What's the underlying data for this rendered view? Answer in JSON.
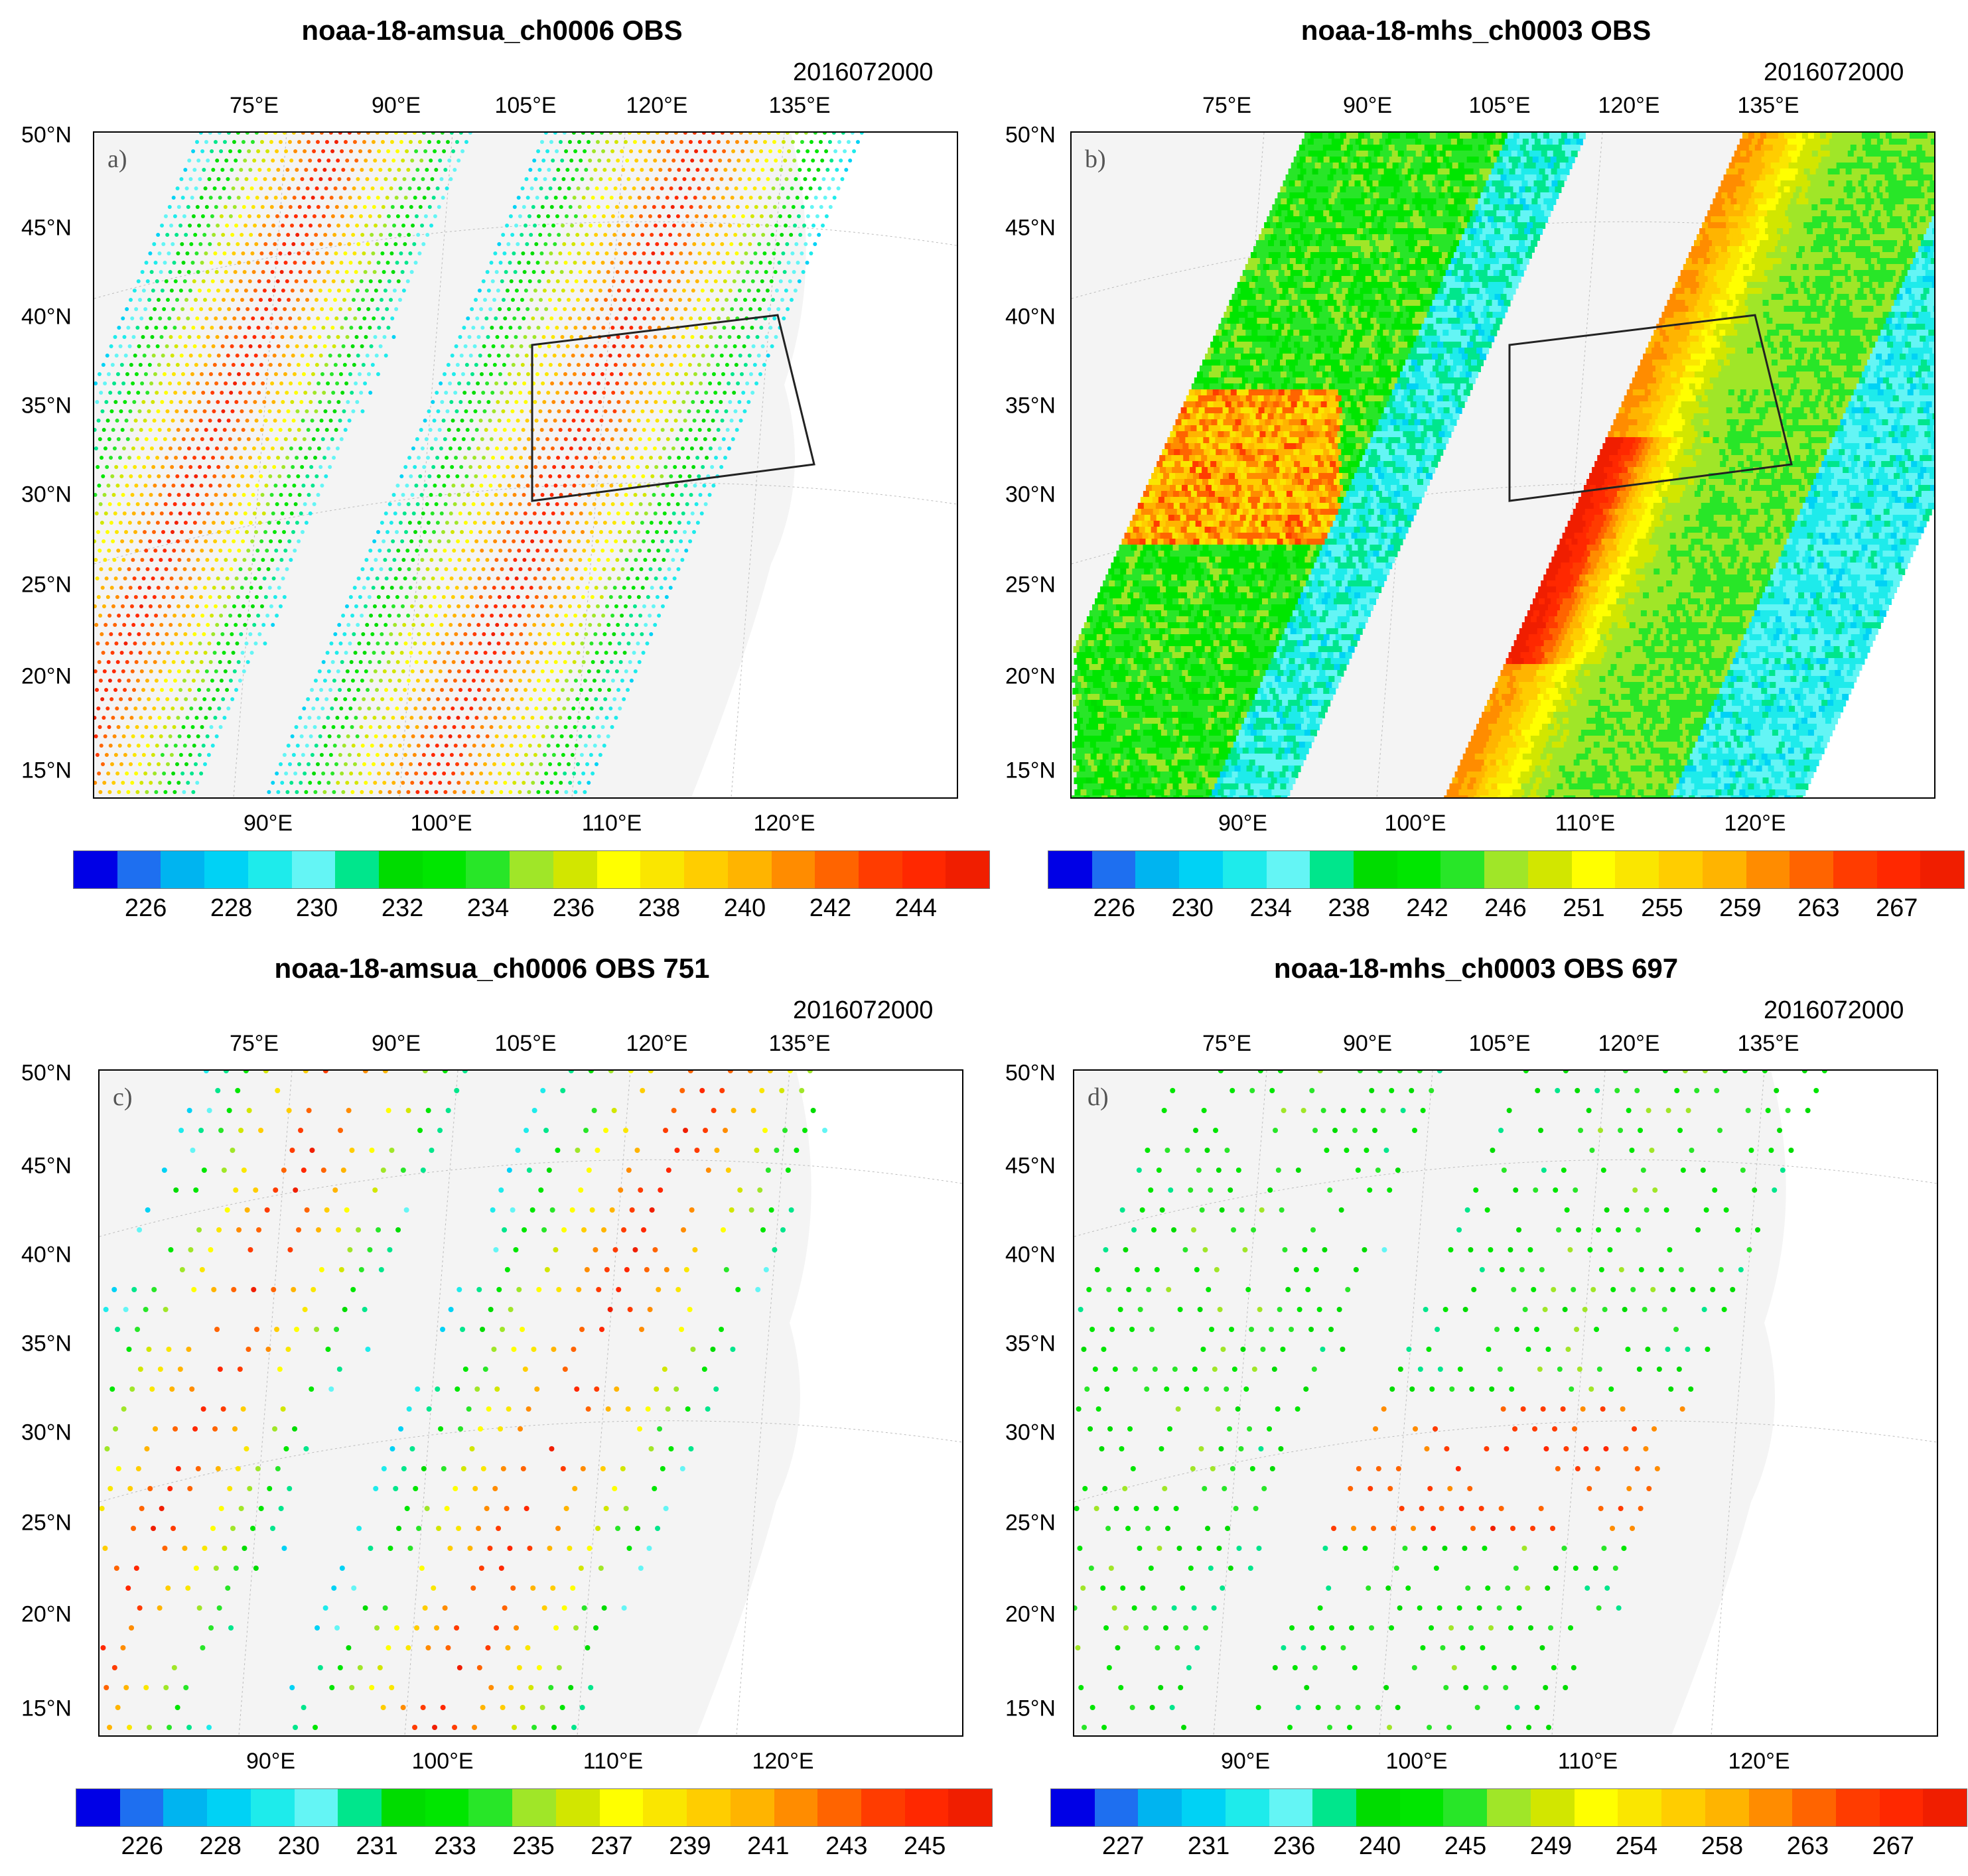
{
  "colors": [
    "#0000e6",
    "#1e6ff0",
    "#00b4f0",
    "#00d2f5",
    "#1eebeb",
    "#64f5f5",
    "#00e68c",
    "#00dc00",
    "#00e600",
    "#28e628",
    "#a0e628",
    "#d2e600",
    "#ffff00",
    "#fae600",
    "#ffcd00",
    "#ffb400",
    "#ff8c00",
    "#ff6400",
    "#ff3c00",
    "#ff2800",
    "#f01e00"
  ],
  "panels": [
    {
      "label": "a)",
      "title": "noaa-18-amsua_ch0006 OBS",
      "date": "2016072000",
      "top_lon_labels": [
        "75°E",
        "90°E",
        "105°E",
        "120°E",
        "135°E"
      ],
      "lat_labels": [
        "50°N",
        "45°N",
        "40°N",
        "35°N",
        "30°N",
        "25°N",
        "20°N",
        "15°N"
      ],
      "bottom_lon_labels": [
        "90°E",
        "100°E",
        "110°E",
        "120°E"
      ],
      "colorbar_labels": [
        "226",
        "228",
        "230",
        "232",
        "234",
        "236",
        "238",
        "240",
        "242",
        "244"
      ],
      "style": "swath"
    },
    {
      "label": "b)",
      "title": "noaa-18-mhs_ch0003 OBS",
      "date": "2016072000",
      "top_lon_labels": [
        "75°E",
        "90°E",
        "105°E",
        "120°E",
        "135°E"
      ],
      "lat_labels": [
        "50°N",
        "45°N",
        "40°N",
        "35°N",
        "30°N",
        "25°N",
        "20°N",
        "15°N"
      ],
      "bottom_lon_labels": [
        "90°E",
        "100°E",
        "110°E",
        "120°E"
      ],
      "colorbar_labels": [
        "226",
        "230",
        "234",
        "238",
        "242",
        "246",
        "251",
        "255",
        "259",
        "263",
        "267"
      ],
      "style": "field"
    },
    {
      "label": "c)",
      "title": "noaa-18-amsua_ch0006  OBS  751",
      "date": "2016072000",
      "top_lon_labels": [
        "75°E",
        "90°E",
        "105°E",
        "120°E",
        "135°E"
      ],
      "lat_labels": [
        "50°N",
        "45°N",
        "40°N",
        "35°N",
        "30°N",
        "25°N",
        "20°N",
        "15°N"
      ],
      "bottom_lon_labels": [
        "90°E",
        "100°E",
        "110°E",
        "120°E"
      ],
      "colorbar_labels": [
        "226",
        "228",
        "230",
        "231",
        "233",
        "235",
        "237",
        "239",
        "241",
        "243",
        "245"
      ],
      "style": "thinned"
    },
    {
      "label": "d)",
      "title": "noaa-18-mhs_ch0003  OBS  697",
      "date": "2016072000",
      "top_lon_labels": [
        "75°E",
        "90°E",
        "105°E",
        "120°E",
        "135°E"
      ],
      "lat_labels": [
        "50°N",
        "45°N",
        "40°N",
        "35°N",
        "30°N",
        "25°N",
        "20°N",
        "15°N"
      ],
      "bottom_lon_labels": [
        "90°E",
        "100°E",
        "110°E",
        "120°E"
      ],
      "colorbar_labels": [
        "227",
        "231",
        "236",
        "240",
        "245",
        "249",
        "254",
        "258",
        "263",
        "267"
      ],
      "style": "thinned-mhs"
    }
  ]
}
